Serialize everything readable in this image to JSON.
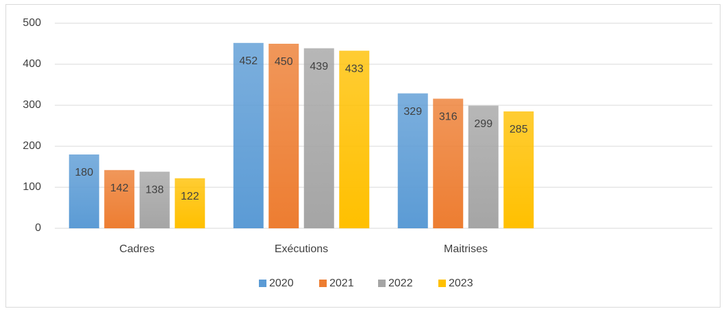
{
  "chart_data": {
    "type": "bar",
    "categories": [
      "Cadres",
      "Exécutions",
      "Maitrises",
      null
    ],
    "series": [
      {
        "name": "2020",
        "color": "#5b9bd5",
        "values": [
          180,
          452,
          329,
          null
        ]
      },
      {
        "name": "2021",
        "color": "#ed7d31",
        "values": [
          142,
          450,
          316,
          null
        ]
      },
      {
        "name": "2022",
        "color": "#a5a5a5",
        "values": [
          138,
          439,
          299,
          null
        ]
      },
      {
        "name": "2023",
        "color": "#ffc000",
        "values": [
          122,
          433,
          285,
          null
        ]
      }
    ],
    "ylim": [
      0,
      500
    ],
    "yticks": [
      0,
      100,
      200,
      300,
      400,
      500
    ],
    "grid": true,
    "legend": "bottom"
  }
}
